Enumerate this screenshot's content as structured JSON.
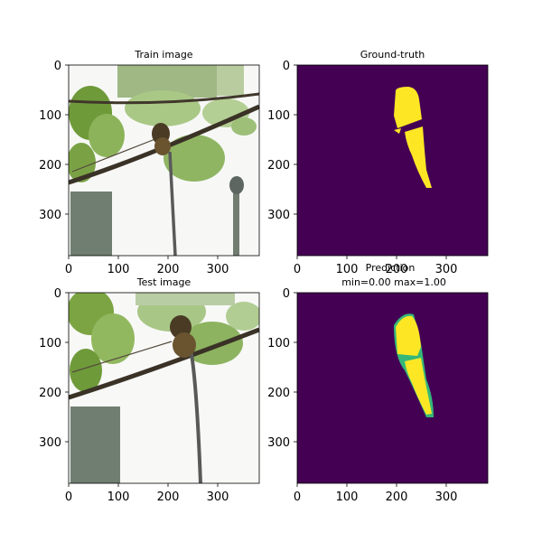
{
  "chart_data": [
    {
      "type": "image",
      "title": "Train image",
      "xticks": [
        0,
        100,
        200,
        300
      ],
      "yticks": [
        0,
        100,
        200,
        300
      ],
      "xlim": [
        0,
        384
      ],
      "ylim": [
        384,
        0
      ],
      "content": "photo"
    },
    {
      "type": "heatmap",
      "title": "Ground-truth",
      "xticks": [
        0,
        100,
        200,
        300
      ],
      "yticks": [
        0,
        100,
        200,
        300
      ],
      "xlim": [
        0,
        384
      ],
      "ylim": [
        384,
        0
      ],
      "colormap": "viridis",
      "background_color": "#440154",
      "mask_color": "#fde725"
    },
    {
      "type": "image",
      "title": "Test image",
      "xticks": [
        0,
        100,
        200,
        300
      ],
      "yticks": [
        0,
        100,
        200,
        300
      ],
      "xlim": [
        0,
        384
      ],
      "ylim": [
        384,
        0
      ],
      "content": "photo"
    },
    {
      "type": "heatmap",
      "title": "Prediction",
      "subtitle": "min=0.00 max=1.00",
      "xticks": [
        0,
        100,
        200,
        300
      ],
      "yticks": [
        0,
        100,
        200,
        300
      ],
      "xlim": [
        0,
        384
      ],
      "ylim": [
        384,
        0
      ],
      "value_min": 0.0,
      "value_max": 1.0,
      "colormap": "viridis",
      "background_color": "#440154",
      "mask_color": "#fde725",
      "edge_color": "#35b779"
    }
  ]
}
